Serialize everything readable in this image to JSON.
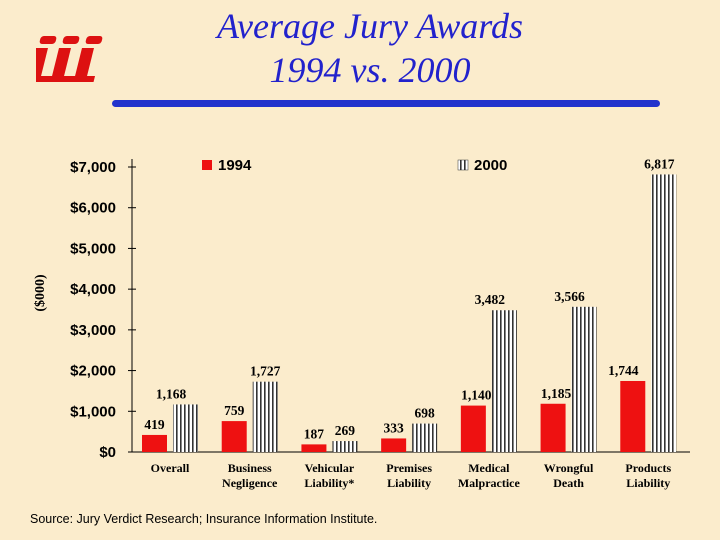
{
  "header": {
    "logo_text": "iii",
    "title_line1": "Average Jury Awards",
    "title_line2": "1994 vs. 2000"
  },
  "colors": {
    "title": "#2222cc",
    "bar_1994": "#ee1111",
    "bar_2000_stripe": "#333333",
    "background": "#fbeccc"
  },
  "chart_data": {
    "type": "bar",
    "title": "",
    "ylabel": "($000)",
    "xlabel": "",
    "ylim": [
      0,
      7000
    ],
    "yticks": [
      "$0",
      "$1,000",
      "$2,000",
      "$3,000",
      "$4,000",
      "$5,000",
      "$6,000",
      "$7,000"
    ],
    "ytick_values": [
      0,
      1000,
      2000,
      3000,
      4000,
      5000,
      6000,
      7000
    ],
    "categories": [
      [
        "Overall"
      ],
      [
        "Business",
        "Negligence"
      ],
      [
        "Vehicular",
        "Liability*"
      ],
      [
        "Premises",
        "Liability"
      ],
      [
        "Medical",
        "Malpractice"
      ],
      [
        "Wrongful",
        "Death"
      ],
      [
        "Products",
        "Liability"
      ]
    ],
    "series": [
      {
        "name": "1994",
        "values": [
          419,
          759,
          187,
          333,
          1140,
          1185,
          1744
        ],
        "labels": [
          "419",
          "759",
          "187",
          "333",
          "1,140",
          "1,185",
          "1,744"
        ]
      },
      {
        "name": "2000",
        "values": [
          1168,
          1727,
          269,
          698,
          3482,
          3566,
          6817
        ],
        "labels": [
          "1,168",
          "1,727",
          "269",
          "698",
          "3,482",
          "3,566",
          "6,817"
        ]
      }
    ],
    "legend": "top",
    "grid": false
  },
  "footer": {
    "source": "Source: Jury Verdict Research; Insurance Information Institute."
  }
}
